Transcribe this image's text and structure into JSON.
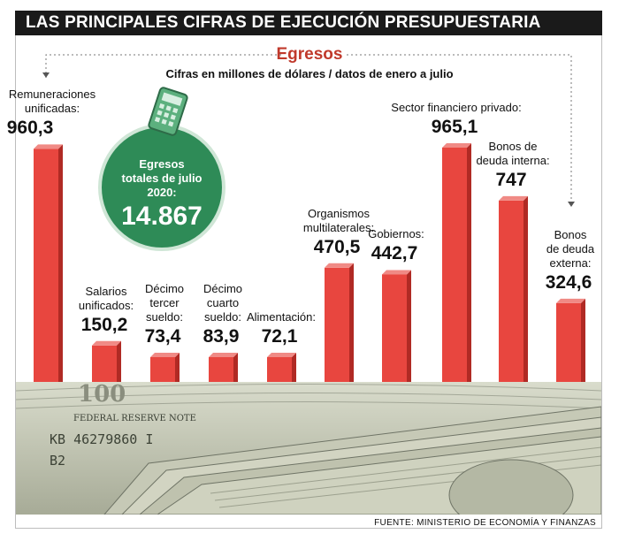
{
  "title": "LAS PRINCIPALES CIFRAS DE EJECUCIÓN PRESUPUESTARIA",
  "header": "Egresos",
  "subtitle": "Cifras en millones de dólares / datos de enero a julio",
  "total": {
    "label_lines": [
      "Egresos",
      "totales de julio",
      "2020:"
    ],
    "value": "14.867"
  },
  "source": "FUENTE: MINISTERIO DE ECONOMÍA Y FINANZAS",
  "money_texts": {
    "serial": "KB 46279860 I",
    "code": "B2",
    "note": "FEDERAL RESERVE NOTE",
    "denom": "100"
  },
  "colors": {
    "bar_front": "#e8463f",
    "bar_side": "#b02a24",
    "bar_top": "#f08a85",
    "circle": "#2e8b57",
    "accent": "#c0392b"
  },
  "chart_data": {
    "type": "bar",
    "unit": "millones de dólares",
    "categories": [
      [
        "Remuneraciones",
        "unificadas:"
      ],
      [
        "Salarios",
        "unificados:"
      ],
      [
        "Décimo",
        "tercer",
        "sueldo:"
      ],
      [
        "Décimo",
        "cuarto",
        "sueldo:"
      ],
      [
        "Alimentación:"
      ],
      [
        "Organismos",
        "multilaterales:"
      ],
      [
        "Gobiernos:"
      ],
      [
        "Sector financiero privado:"
      ],
      [
        "Bonos de",
        "deuda interna:"
      ],
      [
        "Bonos",
        "de deuda",
        "externa:"
      ]
    ],
    "value_labels": [
      "960,3",
      "150,2",
      "73,4",
      "83,9",
      "72,1",
      "470,5",
      "442,7",
      "965,1",
      "747",
      "324,6"
    ],
    "values": [
      960.3,
      150.2,
      73.4,
      83.9,
      72.1,
      470.5,
      442.7,
      965.1,
      747,
      324.6
    ]
  }
}
